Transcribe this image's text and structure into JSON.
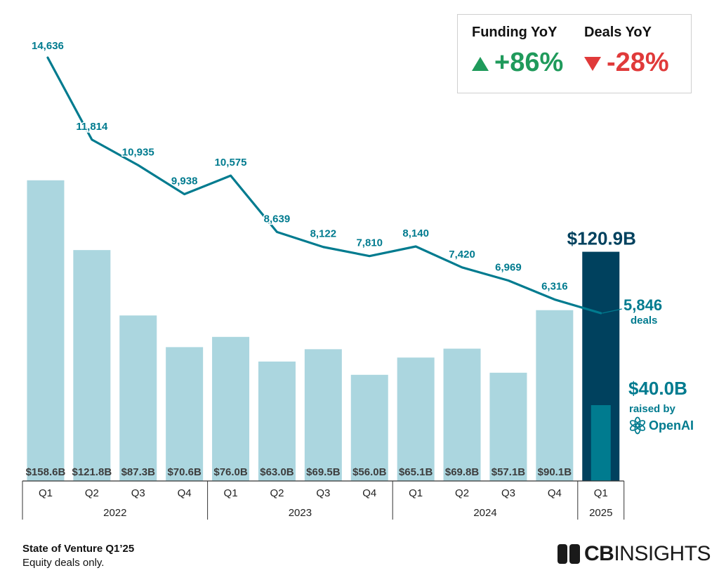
{
  "chart_data": {
    "type": "bar",
    "categories": [
      "Q1",
      "Q2",
      "Q3",
      "Q4",
      "Q1",
      "Q2",
      "Q3",
      "Q4",
      "Q1",
      "Q2",
      "Q3",
      "Q4",
      "Q1"
    ],
    "years": [
      {
        "label": "2022",
        "span": [
          0,
          3
        ]
      },
      {
        "label": "2023",
        "span": [
          4,
          7
        ]
      },
      {
        "label": "2024",
        "span": [
          8,
          11
        ]
      },
      {
        "label": "2025",
        "span": [
          12,
          12
        ]
      }
    ],
    "series": [
      {
        "name": "Funding",
        "values": [
          158.6,
          121.8,
          87.3,
          70.6,
          76.0,
          63.0,
          69.5,
          56.0,
          65.1,
          69.8,
          57.1,
          90.1,
          120.9
        ],
        "labels": [
          "$158.6B",
          "$121.8B",
          "$87.3B",
          "$70.6B",
          "$76.0B",
          "$63.0B",
          "$69.5B",
          "$56.0B",
          "$65.1B",
          "$69.8B",
          "$57.1B",
          "$90.1B",
          "$120.9B"
        ]
      },
      {
        "name": "Deals",
        "type": "line",
        "values": [
          14636,
          11814,
          10935,
          9938,
          10575,
          8639,
          8122,
          7810,
          8140,
          7420,
          6969,
          6316,
          5846
        ],
        "labels": [
          "14,636",
          "11,814",
          "10,935",
          "9,938",
          "10,575",
          "8,639",
          "8,122",
          "7,810",
          "8,140",
          "7,420",
          "6,969",
          "6,316",
          "5,846"
        ]
      }
    ],
    "openai_inset": {
      "value": 40.0,
      "label": "$40.0B",
      "note": "raised by",
      "brand": "OpenAI"
    },
    "deals_unit": "deals",
    "ylim_funding": [
      0,
      175
    ],
    "ylim_deals": [
      0,
      16500
    ],
    "grid": false,
    "colors": {
      "bar": "#abd6df",
      "bar_highlight": "#00415e",
      "bar_inset": "#007b8f",
      "line": "#007b8f",
      "label": "#3d3d3d",
      "axis": "#333333"
    }
  },
  "yoy": {
    "funding_label": "Funding YoY",
    "funding_value": "+86%",
    "funding_color": "#1f9a5b",
    "deals_label": "Deals YoY",
    "deals_value": "-28%",
    "deals_color": "#e03a3a"
  },
  "footer": {
    "title": "State of Venture Q1’25",
    "note": "Equity deals only."
  },
  "brand": {
    "bold": "CB",
    "rest": "INSIGHTS"
  }
}
